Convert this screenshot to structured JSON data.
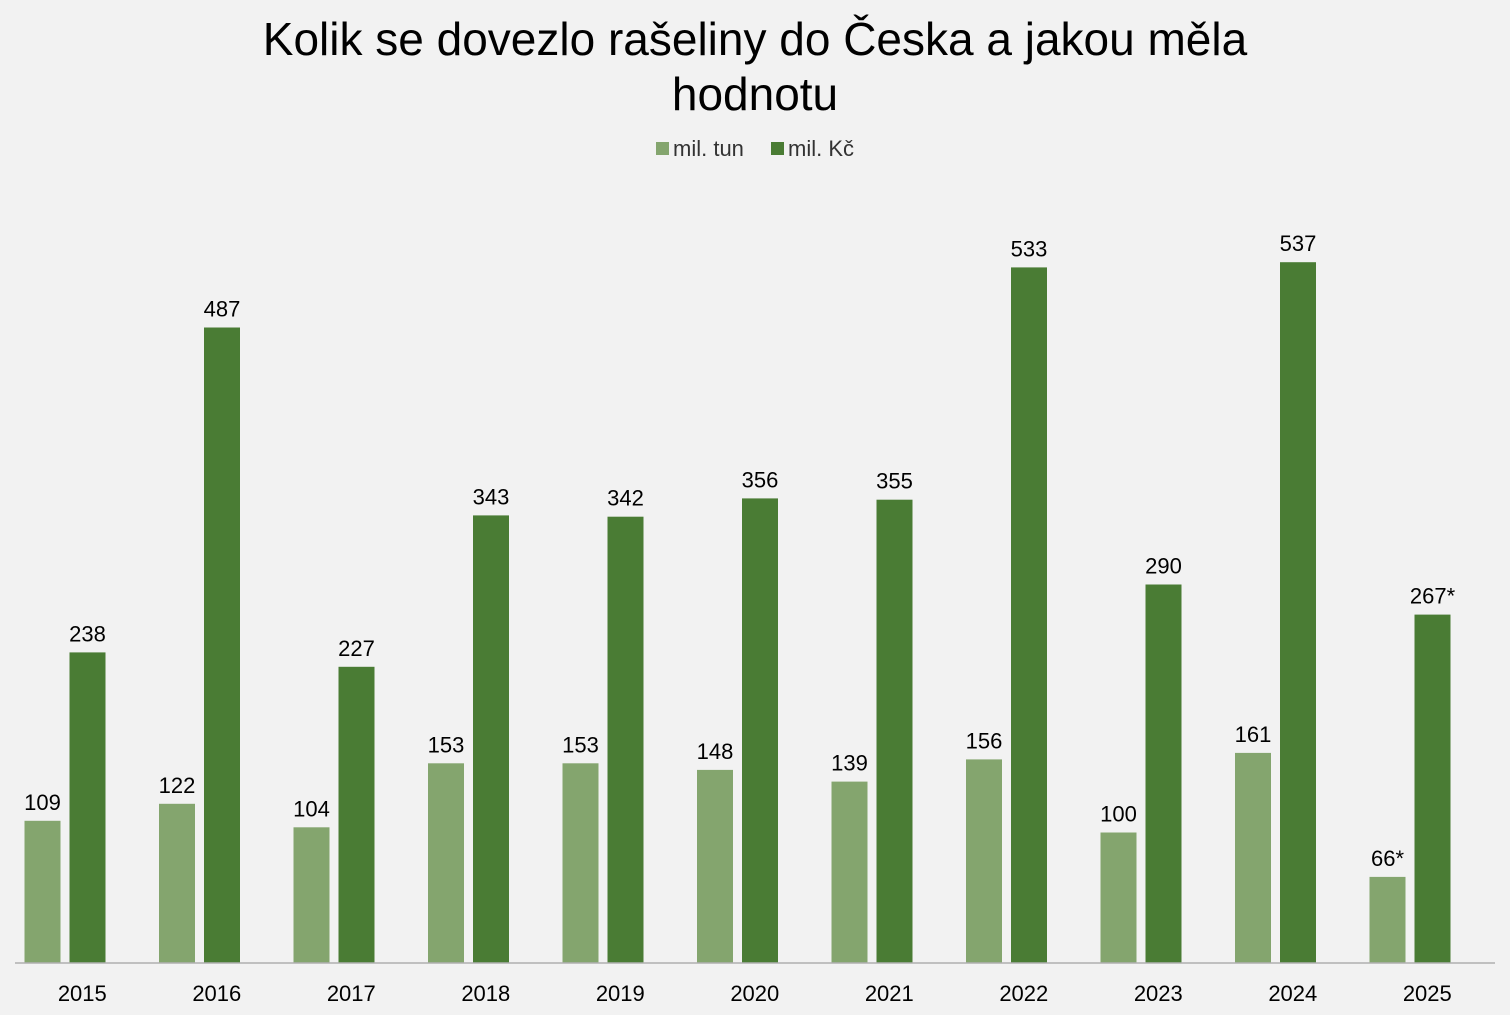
{
  "chart_data": {
    "type": "bar",
    "title_lines": [
      "Kolik se dovezlo rašeliny do Česka a jakou měla",
      "hodnotu"
    ],
    "xlabel": "",
    "ylabel": "",
    "ylim": [
      0,
      600
    ],
    "grid": false,
    "legend_position": "top",
    "categories": [
      "2015",
      "2016",
      "2017",
      "2018",
      "2019",
      "2020",
      "2021",
      "2022",
      "2023",
      "2024",
      "2025"
    ],
    "series": [
      {
        "name": "mil. tun",
        "color": "#84a56e",
        "values": [
          109,
          122,
          104,
          153,
          153,
          148,
          139,
          156,
          100,
          161,
          66
        ],
        "labels": [
          "109",
          "122",
          "104",
          "153",
          "153",
          "148",
          "139",
          "156",
          "100",
          "161",
          "66*"
        ]
      },
      {
        "name": "mil. Kč",
        "color": "#4a7c34",
        "values": [
          238,
          487,
          227,
          343,
          342,
          356,
          355,
          533,
          290,
          537,
          267
        ],
        "labels": [
          "238",
          "487",
          "227",
          "343",
          "342",
          "356",
          "355",
          "533",
          "290",
          "537",
          "267*"
        ]
      }
    ]
  }
}
